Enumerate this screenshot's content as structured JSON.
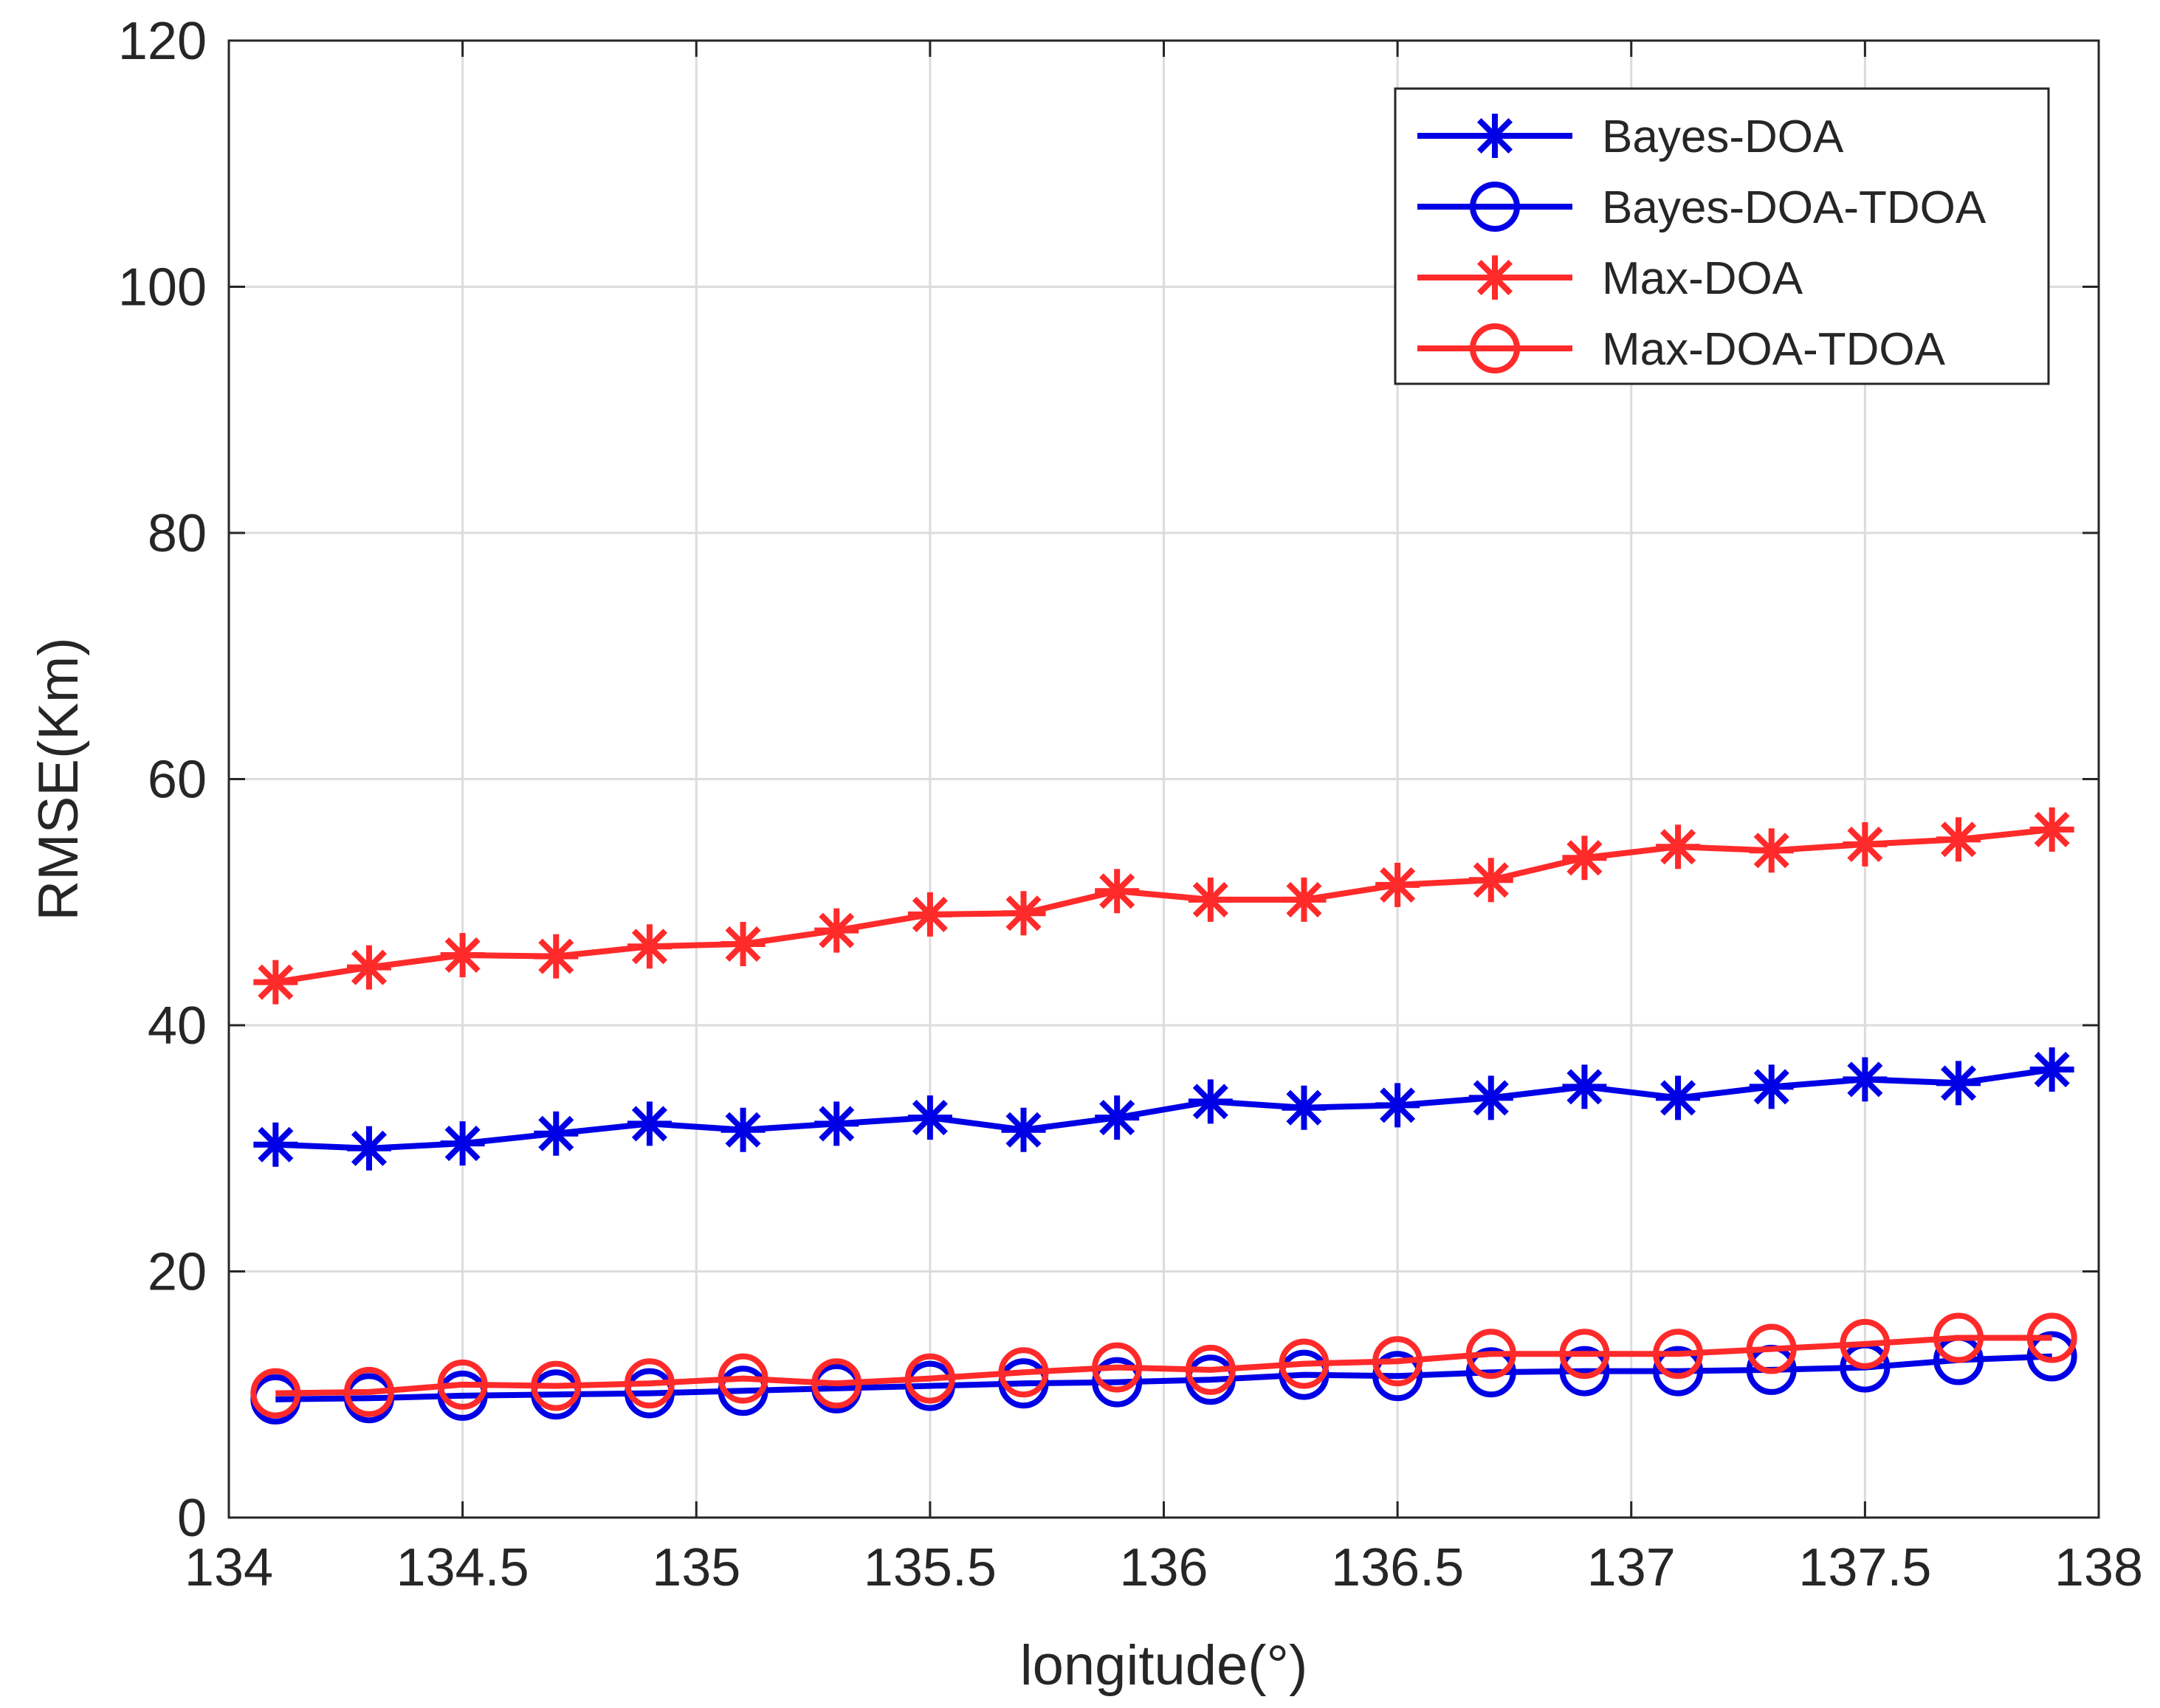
{
  "chart_data": {
    "type": "line",
    "title": "",
    "xlabel": "longitude(°)",
    "ylabel": "RMSE(Km)",
    "xlim": [
      134,
      138
    ],
    "ylim": [
      0,
      120
    ],
    "xticks": [
      134,
      134.5,
      135,
      135.5,
      136,
      136.5,
      137,
      137.5,
      138
    ],
    "xtick_labels": [
      "134",
      "134.5",
      "135",
      "135.5",
      "136",
      "136.5",
      "137",
      "137.5",
      "138"
    ],
    "yticks": [
      0,
      20,
      40,
      60,
      80,
      100,
      120
    ],
    "ytick_labels": [
      "0",
      "20",
      "40",
      "60",
      "80",
      "100",
      "120"
    ],
    "grid": true,
    "legend_position": "top-right",
    "x": [
      134.1,
      134.3,
      134.5,
      134.7,
      134.9,
      135.1,
      135.3,
      135.5,
      135.7,
      135.9,
      136.1,
      136.3,
      136.5,
      136.7,
      136.9,
      137.1,
      137.3,
      137.5,
      137.7,
      137.9
    ],
    "series": [
      {
        "name": "Bayes-DOA",
        "color": "#0000e6",
        "marker": "asterisk",
        "values": [
          30.3,
          30.0,
          30.4,
          31.2,
          32.0,
          31.5,
          32.0,
          32.5,
          31.5,
          32.5,
          33.8,
          33.3,
          33.5,
          34.1,
          35.0,
          34.1,
          35.0,
          35.6,
          35.3,
          36.4
        ]
      },
      {
        "name": "Bayes-DOA-TDOA",
        "color": "#0000e6",
        "marker": "circle",
        "values": [
          9.6,
          9.7,
          9.9,
          10.0,
          10.1,
          10.3,
          10.5,
          10.7,
          10.9,
          11.0,
          11.2,
          11.6,
          11.5,
          11.8,
          11.9,
          11.9,
          12.0,
          12.2,
          12.8,
          13.1
        ]
      },
      {
        "name": "Max-DOA",
        "color": "#ff2a2a",
        "marker": "asterisk",
        "values": [
          43.5,
          44.7,
          45.7,
          45.6,
          46.4,
          46.6,
          47.7,
          49.0,
          49.1,
          50.9,
          50.2,
          50.2,
          51.4,
          51.8,
          53.6,
          54.5,
          54.2,
          54.7,
          55.1,
          55.9
        ]
      },
      {
        "name": "Max-DOA-TDOA",
        "color": "#ff2a2a",
        "marker": "circle",
        "values": [
          10.1,
          10.2,
          10.8,
          10.7,
          10.9,
          11.3,
          10.9,
          11.3,
          11.8,
          12.2,
          12.0,
          12.5,
          12.7,
          13.3,
          13.3,
          13.3,
          13.7,
          14.1,
          14.6,
          14.6
        ]
      }
    ]
  }
}
